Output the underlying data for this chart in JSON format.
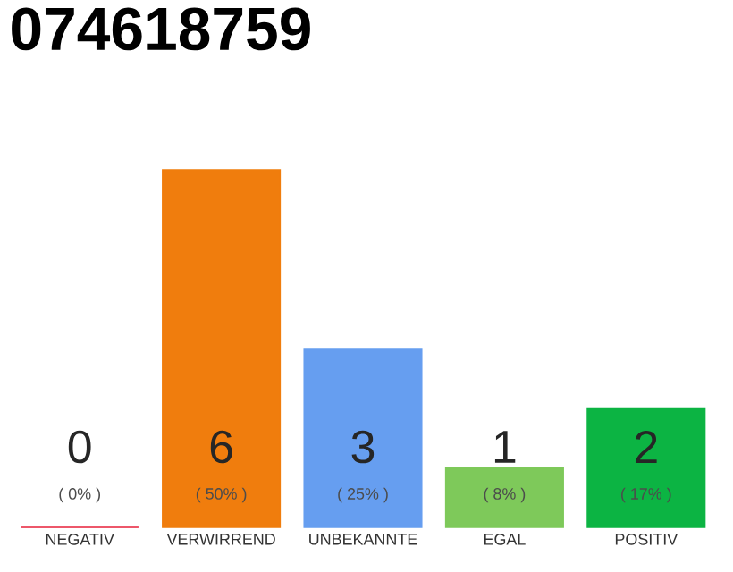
{
  "chart_data": {
    "type": "bar",
    "title": "074618759",
    "categories": [
      "NEGATIV",
      "VERWIRREND",
      "UNBEKANNTE",
      "EGAL",
      "POSITIV"
    ],
    "values": [
      0,
      6,
      3,
      1,
      2
    ],
    "colors": [
      "#e8203a",
      "#f07d0d",
      "#669ef0",
      "#7ec95a",
      "#0cb443"
    ],
    "data_labels": true,
    "annotations": [
      "( 0% )",
      "( 50% )",
      "( 25% )",
      "( 8% )",
      "( 17% )"
    ],
    "ylim": [
      0,
      6
    ],
    "tick_labels": "x"
  }
}
